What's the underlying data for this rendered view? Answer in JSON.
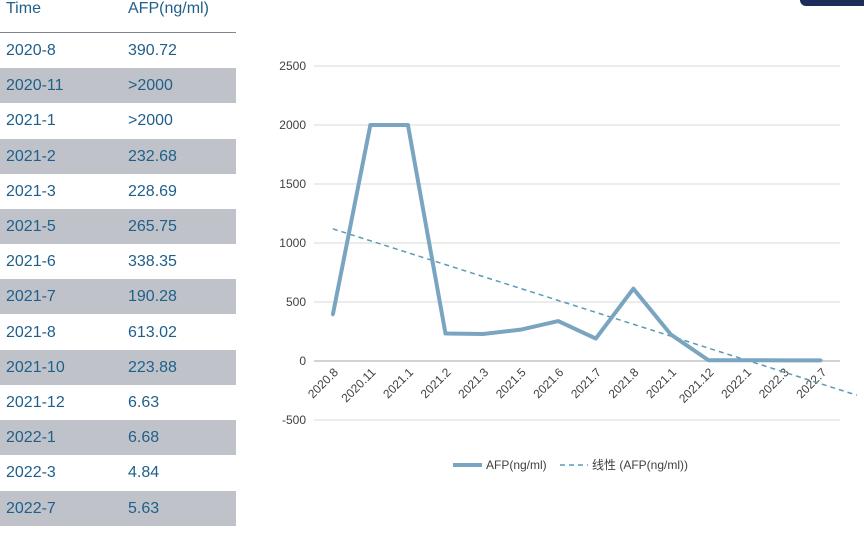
{
  "table": {
    "headers": {
      "time": "Time",
      "afp": "AFP(ng/ml)"
    },
    "rows": [
      {
        "time": "2020-8",
        "afp": "390.72"
      },
      {
        "time": "2020-11",
        "afp": ">2000"
      },
      {
        "time": "2021-1",
        "afp": ">2000"
      },
      {
        "time": "2021-2",
        "afp": "232.68"
      },
      {
        "time": "2021-3",
        "afp": "228.69"
      },
      {
        "time": "2021-5",
        "afp": "265.75"
      },
      {
        "time": "2021-6",
        "afp": "338.35"
      },
      {
        "time": "2021-7",
        "afp": "190.28"
      },
      {
        "time": "2021-8",
        "afp": "613.02"
      },
      {
        "time": "2021-10",
        "afp": "223.88"
      },
      {
        "time": "2021-12",
        "afp": "6.63"
      },
      {
        "time": "2022-1",
        "afp": "6.68"
      },
      {
        "time": "2022-3",
        "afp": "4.84"
      },
      {
        "time": "2022-7",
        "afp": "5.63"
      }
    ]
  },
  "chart_data": {
    "type": "line",
    "title": "",
    "xlabel": "",
    "ylabel": "",
    "categories": [
      "2020.8",
      "2020.11",
      "2021.1",
      "2021.2",
      "2021.3",
      "2021.5",
      "2021.6",
      "2021.7",
      "2021.8",
      "2021.1",
      "2021.12",
      "2022.1",
      "2022.3",
      "2022.7"
    ],
    "series": [
      {
        "name": "AFP(ng/ml)",
        "values": [
          390.72,
          2000,
          2000,
          232.68,
          228.69,
          265.75,
          338.35,
          190.28,
          613.02,
          223.88,
          6.63,
          6.68,
          4.84,
          5.63
        ],
        "color": "#7aa5c0",
        "style": "solid"
      },
      {
        "name": "线性 (AFP(ng/ml))",
        "trend_start": 1120,
        "trend_end": -290,
        "color": "#5b9bb5",
        "style": "dashed"
      }
    ],
    "ylim": [
      -500,
      2500
    ],
    "yticks": [
      -500,
      0,
      500,
      1000,
      1500,
      2000,
      2500
    ],
    "ytick_labels": [
      "-500",
      "0",
      "500",
      "1000",
      "1500",
      "2000",
      "2500"
    ],
    "grid": true,
    "legend": "bottom"
  }
}
